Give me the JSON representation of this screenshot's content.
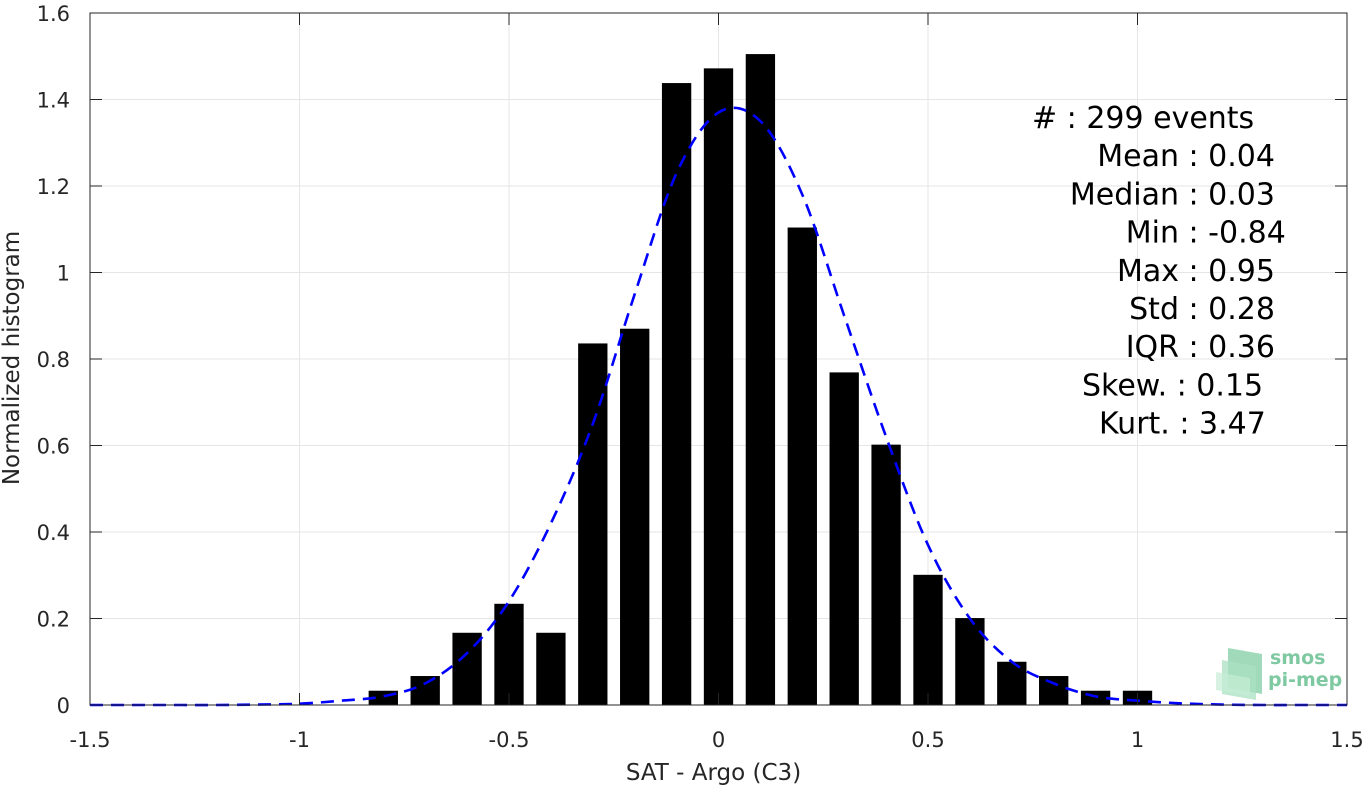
{
  "chart_data": {
    "type": "bar",
    "xlabel": "SAT - Argo (C3)",
    "ylabel": "Normalized histogram",
    "xlim": [
      -1.5,
      1.5
    ],
    "ylim": [
      0,
      1.6
    ],
    "xticks": [
      -1.5,
      -1,
      -0.5,
      0,
      0.5,
      1,
      1.5
    ],
    "xtick_labels": [
      "-1.5",
      "-1",
      "-0.5",
      "0",
      "0.5",
      "1",
      "1.5"
    ],
    "yticks": [
      0,
      0.2,
      0.4,
      0.6,
      0.8,
      1,
      1.2,
      1.4,
      1.6
    ],
    "ytick_labels": [
      "0",
      "0.2",
      "0.4",
      "0.6",
      "0.8",
      "1",
      "1.2",
      "1.4",
      "1.6"
    ],
    "grid": true,
    "bar_width": 0.07,
    "bars": {
      "x": [
        -0.8,
        -0.7,
        -0.6,
        -0.5,
        -0.4,
        -0.3,
        -0.2,
        -0.1,
        0,
        0.1,
        0.2,
        0.3,
        0.4,
        0.5,
        0.6,
        0.7,
        0.8,
        0.9,
        1.0
      ],
      "values": [
        0.033,
        0.067,
        0.167,
        0.234,
        0.167,
        0.836,
        0.87,
        1.438,
        1.472,
        1.505,
        1.104,
        0.769,
        0.602,
        0.301,
        0.201,
        0.1,
        0.067,
        0.033,
        0.033
      ],
      "color": "#000000"
    },
    "fit_curve": {
      "style": "dashed",
      "color": "#0000ff",
      "x": [
        -1.5,
        -1.4,
        -1.3,
        -1.2,
        -1.1,
        -1.0,
        -0.9,
        -0.8,
        -0.7,
        -0.6,
        -0.5,
        -0.4,
        -0.3,
        -0.2,
        -0.1,
        0,
        0.1,
        0.2,
        0.3,
        0.4,
        0.5,
        0.6,
        0.7,
        0.8,
        0.9,
        1.0,
        1.1,
        1.2,
        1.3,
        1.4,
        1.5
      ],
      "y": [
        0.0,
        0.0,
        0.0,
        0.0,
        0.001,
        0.003,
        0.01,
        0.02,
        0.05,
        0.12,
        0.24,
        0.42,
        0.65,
        0.95,
        1.23,
        1.37,
        1.35,
        1.18,
        0.9,
        0.62,
        0.37,
        0.2,
        0.1,
        0.05,
        0.02,
        0.01,
        0.004,
        0.001,
        0.0,
        0.0,
        0.0
      ]
    },
    "stats": [
      "#  : 299 events",
      "Mean : 0.04",
      "Median : 0.03",
      "Min : -0.84",
      "Max : 0.95",
      "Std : 0.28",
      "IQR : 0.36",
      "Skew. : 0.15",
      "Kurt. : 3.47"
    ]
  },
  "logo": {
    "line1": "smos",
    "line2": "pi-mep",
    "color": "#7fc9a2"
  }
}
